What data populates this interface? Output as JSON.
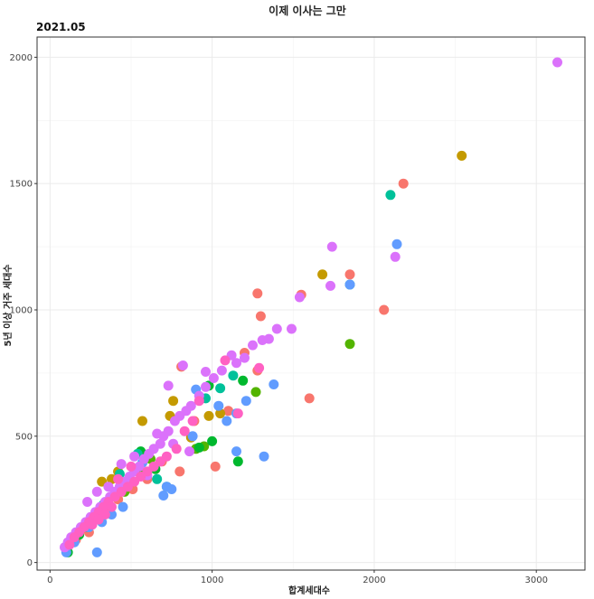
{
  "chart_data": {
    "type": "scatter",
    "title": "이제 이사는 그만",
    "subtitle": "2021.05",
    "xlabel": "합계세대수",
    "ylabel": "5년 이상 거주 세대수",
    "xlim": [
      -80,
      3300
    ],
    "ylim": [
      -30,
      2080
    ],
    "x_ticks": [
      0,
      1000,
      2000,
      3000
    ],
    "y_ticks": [
      0,
      500,
      1000,
      1500,
      2000
    ],
    "grid": true,
    "legend": "none",
    "series": [
      {
        "color": "#F8766D",
        "points": [
          [
            2180,
            1500
          ],
          [
            2060,
            1000
          ],
          [
            1850,
            1140
          ],
          [
            1600,
            650
          ],
          [
            1300,
            975
          ],
          [
            1280,
            1065
          ],
          [
            1550,
            1060
          ],
          [
            1200,
            830
          ],
          [
            1280,
            760
          ],
          [
            1100,
            600
          ],
          [
            1020,
            380
          ],
          [
            890,
            560
          ],
          [
            810,
            775
          ],
          [
            800,
            360
          ],
          [
            690,
            400
          ],
          [
            600,
            330
          ],
          [
            510,
            290
          ],
          [
            420,
            250
          ],
          [
            330,
            210
          ],
          [
            240,
            120
          ],
          [
            160,
            90
          ]
        ]
      },
      {
        "color": "#C49A00",
        "points": [
          [
            2540,
            1610
          ],
          [
            1680,
            1140
          ],
          [
            760,
            640
          ],
          [
            740,
            580
          ],
          [
            570,
            560
          ],
          [
            420,
            360
          ],
          [
            380,
            330
          ],
          [
            320,
            320
          ],
          [
            870,
            495
          ],
          [
            980,
            580
          ],
          [
            1050,
            590
          ]
        ]
      },
      {
        "color": "#53B400",
        "points": [
          [
            1850,
            865
          ],
          [
            1270,
            675
          ],
          [
            950,
            460
          ],
          [
            900,
            450
          ],
          [
            620,
            410
          ],
          [
            540,
            360
          ],
          [
            460,
            280
          ],
          [
            300,
            200
          ]
        ]
      },
      {
        "color": "#00B82E",
        "points": [
          [
            1160,
            400
          ],
          [
            1000,
            480
          ],
          [
            920,
            455
          ],
          [
            980,
            700
          ],
          [
            1190,
            720
          ],
          [
            560,
            440
          ],
          [
            650,
            370
          ],
          [
            480,
            310
          ],
          [
            380,
            260
          ],
          [
            300,
            180
          ],
          [
            180,
            110
          ],
          [
            110,
            40
          ]
        ]
      },
      {
        "color": "#00C19A",
        "points": [
          [
            2100,
            1455
          ],
          [
            1850,
            1100
          ],
          [
            1130,
            740
          ],
          [
            1050,
            690
          ],
          [
            960,
            650
          ],
          [
            720,
            300
          ],
          [
            660,
            330
          ],
          [
            540,
            430
          ],
          [
            430,
            350
          ],
          [
            330,
            230
          ],
          [
            220,
            140
          ]
        ]
      },
      {
        "color": "#619CFF",
        "points": [
          [
            2140,
            1260
          ],
          [
            1850,
            1100
          ],
          [
            1380,
            705
          ],
          [
            1320,
            420
          ],
          [
            1210,
            640
          ],
          [
            1150,
            440
          ],
          [
            1150,
            590
          ],
          [
            1090,
            560
          ],
          [
            1040,
            620
          ],
          [
            900,
            685
          ],
          [
            880,
            500
          ],
          [
            750,
            290
          ],
          [
            720,
            300
          ],
          [
            700,
            265
          ],
          [
            570,
            395
          ],
          [
            450,
            220
          ],
          [
            380,
            190
          ],
          [
            320,
            160
          ],
          [
            290,
            40
          ],
          [
            240,
            140
          ],
          [
            150,
            80
          ],
          [
            100,
            40
          ]
        ]
      },
      {
        "color": "#DB72FB",
        "points": [
          [
            3130,
            1980
          ],
          [
            1740,
            1250
          ],
          [
            2130,
            1210
          ],
          [
            1730,
            1095
          ],
          [
            1540,
            1050
          ],
          [
            1490,
            925
          ],
          [
            1400,
            925
          ],
          [
            1350,
            885
          ],
          [
            1310,
            880
          ],
          [
            1250,
            860
          ],
          [
            1200,
            810
          ],
          [
            1150,
            790
          ],
          [
            1120,
            820
          ],
          [
            1060,
            760
          ],
          [
            1010,
            730
          ],
          [
            960,
            695
          ],
          [
            920,
            660
          ],
          [
            870,
            620
          ],
          [
            840,
            600
          ],
          [
            800,
            580
          ],
          [
            770,
            560
          ],
          [
            730,
            520
          ],
          [
            700,
            500
          ],
          [
            680,
            470
          ],
          [
            640,
            450
          ],
          [
            610,
            430
          ],
          [
            580,
            410
          ],
          [
            550,
            380
          ],
          [
            520,
            360
          ],
          [
            490,
            340
          ],
          [
            460,
            320
          ],
          [
            430,
            300
          ],
          [
            400,
            280
          ],
          [
            370,
            260
          ],
          [
            340,
            240
          ],
          [
            310,
            220
          ],
          [
            280,
            200
          ],
          [
            250,
            180
          ],
          [
            220,
            160
          ],
          [
            190,
            140
          ],
          [
            160,
            120
          ],
          [
            130,
            100
          ],
          [
            110,
            80
          ],
          [
            90,
            60
          ],
          [
            730,
            700
          ],
          [
            820,
            780
          ],
          [
            960,
            755
          ],
          [
            860,
            440
          ],
          [
            760,
            470
          ],
          [
            660,
            510
          ],
          [
            600,
            345
          ],
          [
            520,
            420
          ],
          [
            440,
            390
          ],
          [
            360,
            300
          ],
          [
            290,
            280
          ],
          [
            230,
            240
          ]
        ]
      },
      {
        "color": "#FF61C3",
        "points": [
          [
            1290,
            770
          ],
          [
            1160,
            590
          ],
          [
            1080,
            800
          ],
          [
            920,
            640
          ],
          [
            880,
            560
          ],
          [
            830,
            520
          ],
          [
            780,
            450
          ],
          [
            720,
            420
          ],
          [
            680,
            400
          ],
          [
            640,
            380
          ],
          [
            600,
            360
          ],
          [
            560,
            340
          ],
          [
            520,
            320
          ],
          [
            480,
            300
          ],
          [
            440,
            280
          ],
          [
            400,
            260
          ],
          [
            360,
            240
          ],
          [
            330,
            220
          ],
          [
            300,
            200
          ],
          [
            270,
            180
          ],
          [
            240,
            160
          ],
          [
            210,
            140
          ],
          [
            180,
            120
          ],
          [
            150,
            100
          ],
          [
            120,
            70
          ],
          [
            380,
            220
          ],
          [
            340,
            190
          ],
          [
            300,
            170
          ],
          [
            260,
            150
          ],
          [
            420,
            330
          ],
          [
            500,
            380
          ]
        ]
      }
    ]
  }
}
